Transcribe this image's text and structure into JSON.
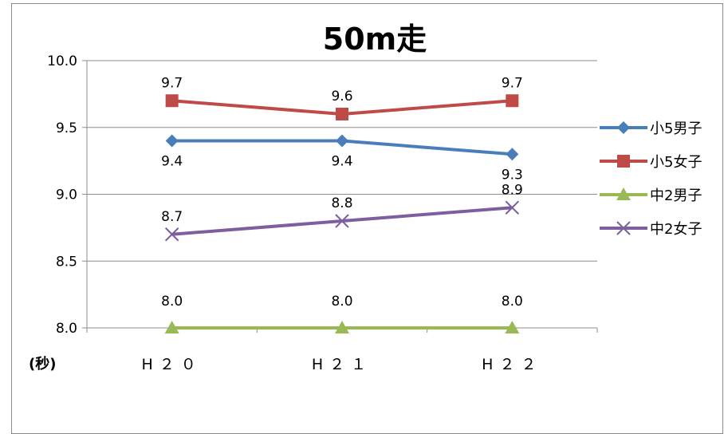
{
  "chart_data": {
    "type": "line",
    "title": "50m走",
    "ylabel": "(秒)",
    "categories": [
      "H２０",
      "H２１",
      "H２２"
    ],
    "ylim": [
      8.0,
      10.0
    ],
    "yticks": [
      "10.0",
      "9.5",
      "9.0",
      "8.5",
      "8.0"
    ],
    "grid": true,
    "legend": "right",
    "series": [
      {
        "name": "小5男子",
        "values": [
          9.4,
          9.4,
          9.3
        ],
        "labels": [
          "9.4",
          "9.4",
          "9.3"
        ],
        "color": "#4a7ebb",
        "marker": "diamond",
        "labelPos": "below"
      },
      {
        "name": "小5女子",
        "values": [
          9.7,
          9.6,
          9.7
        ],
        "labels": [
          "9.7",
          "9.6",
          "9.7"
        ],
        "color": "#be4b48",
        "marker": "square",
        "labelPos": "above"
      },
      {
        "name": "中2男子",
        "values": [
          8.0,
          8.0,
          8.0
        ],
        "labels": [
          "8.0",
          "8.0",
          "8.0"
        ],
        "color": "#98b954",
        "marker": "triangle",
        "labelPos": "high"
      },
      {
        "name": "中2女子",
        "values": [
          8.7,
          8.8,
          8.9
        ],
        "labels": [
          "8.7",
          "8.8",
          "8.9"
        ],
        "color": "#7d5fa0",
        "marker": "x",
        "labelPos": "above"
      }
    ]
  }
}
